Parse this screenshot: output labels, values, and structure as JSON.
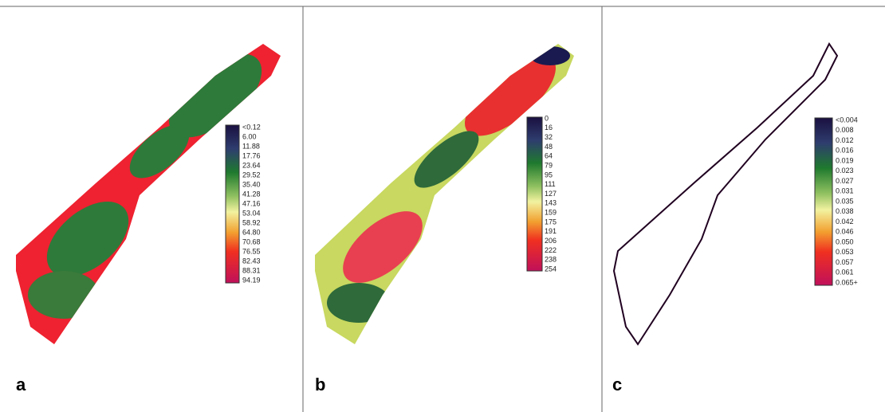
{
  "panels": [
    {
      "label": "a",
      "legend": [
        "<0.12",
        "6.00",
        "11.88",
        "17.76",
        "23.64",
        "29.52",
        "35.40",
        "41.28",
        "47.16",
        "53.04",
        "58.92",
        "64.80",
        "70.68",
        "76.55",
        "82.43",
        "88.31",
        "94.19"
      ]
    },
    {
      "label": "b",
      "legend": [
        "0",
        "16",
        "32",
        "48",
        "64",
        "79",
        "95",
        "111",
        "127",
        "143",
        "159",
        "175",
        "191",
        "206",
        "222",
        "238",
        "254"
      ]
    },
    {
      "label": "c",
      "legend": [
        "<0.004",
        "0.008",
        "0.012",
        "0.016",
        "0.019",
        "0.023",
        "0.027",
        "0.031",
        "0.035",
        "0.038",
        "0.042",
        "0.046",
        "0.050",
        "0.053",
        "0.057",
        "0.061",
        "0.065+"
      ]
    }
  ]
}
